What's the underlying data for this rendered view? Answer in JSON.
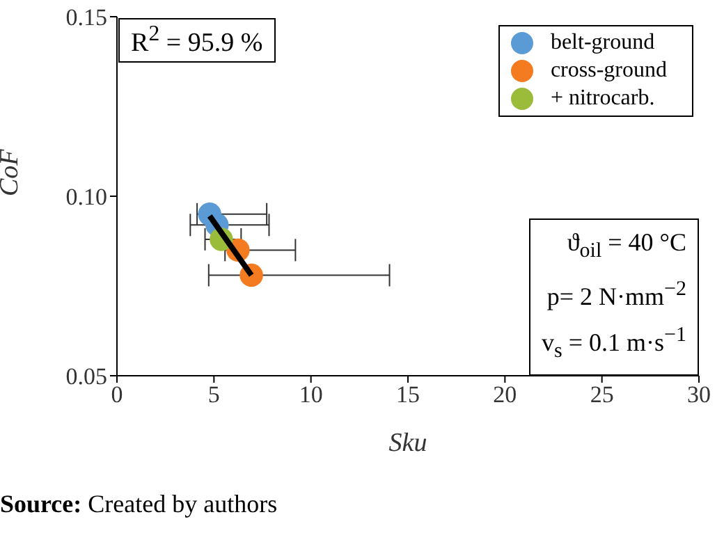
{
  "chart_data": {
    "type": "scatter",
    "xlabel": "Sku",
    "ylabel": "CoF",
    "xlim": [
      0,
      30
    ],
    "ylim": [
      0.05,
      0.15
    ],
    "xticks": [
      0,
      5,
      10,
      15,
      20,
      25,
      30
    ],
    "yticks": [
      0.05,
      {
        "value": 0.1,
        "label": "0.10"
      },
      0.15
    ],
    "grid": false,
    "legend": "top right",
    "marker": "circle",
    "series": [
      {
        "name": "belt-ground",
        "color": "#5b9bd5",
        "x": [
          4.78,
          5.16
        ],
        "values": [
          0.095,
          0.092
        ],
        "xerrors": [
          [
            4.13,
            7.72
          ],
          [
            3.78,
            7.84
          ]
        ]
      },
      {
        "name": "cross-ground",
        "color": "#f47b20",
        "x": [
          6.24,
          6.93
        ],
        "values": [
          0.085,
          0.078
        ],
        "xerrors": [
          [
            5.57,
            9.2
          ],
          [
            4.73,
            14.05
          ]
        ]
      },
      {
        "name": "+ nitrocarb.",
        "color": "#9bbb3b",
        "x": [
          5.38
        ],
        "values": [
          0.088
        ],
        "xerrors": [
          [
            4.54,
            6.4
          ]
        ]
      },
      {
        "type": "line",
        "color": "#000000",
        "marker": "none",
        "x": [
          4.78,
          6.93
        ],
        "values": [
          0.0945,
          0.078
        ]
      }
    ],
    "annotations": [
      "R$^{2}$ = 95.9 %",
      "ϑ$_{oil}$ = 40 °C",
      "p= 2 N·mm$^{−2}$",
      "v$_{s}$ = 0.1 m·s$^{−1}$",
      "Source: Created by authors"
    ]
  }
}
